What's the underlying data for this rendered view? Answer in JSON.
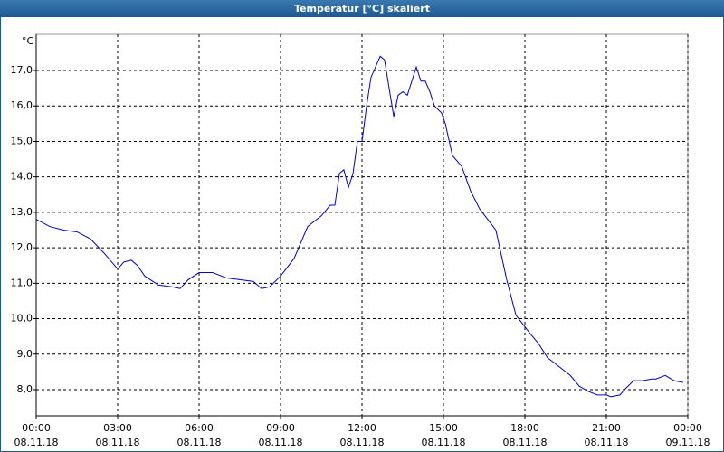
{
  "chart_data": {
    "type": "line",
    "title": "Temperatur [°C] skaliert",
    "y_label": "°C",
    "x": [
      0,
      0.5,
      1,
      1.5,
      2,
      2.5,
      3,
      3.23,
      3.5,
      3.73,
      4,
      4.5,
      5,
      5.3,
      5.6,
      6,
      6.5,
      7,
      7.5,
      8,
      8.3,
      8.6,
      9,
      9.5,
      10,
      10.5,
      10.83,
      11,
      11.17,
      11.33,
      11.5,
      11.67,
      11.83,
      12,
      12.17,
      12.33,
      12.67,
      12.83,
      13,
      13.17,
      13.33,
      13.5,
      13.67,
      14,
      14.17,
      14.33,
      14.5,
      14.67,
      14.93,
      15.07,
      15.33,
      15.67,
      16,
      16.33,
      16.83,
      16.93,
      17.33,
      17.67,
      18.17,
      18.5,
      18.83,
      19.17,
      19.67,
      20,
      20.33,
      20.67,
      21,
      21.17,
      21.5,
      21.67,
      22,
      22.33,
      22.67,
      22.83,
      23.17,
      23.5,
      23.83
    ],
    "series": [
      {
        "color": "#0000cc",
        "values": [
          12.8,
          12.6,
          12.5,
          12.45,
          12.25,
          11.85,
          11.4,
          11.6,
          11.65,
          11.5,
          11.2,
          10.95,
          10.9,
          10.85,
          11.1,
          11.3,
          11.3,
          11.15,
          11.1,
          11.05,
          10.85,
          10.9,
          11.2,
          11.7,
          12.6,
          12.9,
          13.2,
          13.2,
          14.1,
          14.2,
          13.7,
          14.1,
          15.0,
          15.0,
          16.0,
          16.8,
          17.4,
          17.3,
          16.5,
          15.7,
          16.3,
          16.4,
          16.3,
          17.1,
          16.7,
          16.7,
          16.4,
          16.0,
          15.8,
          15.5,
          14.6,
          14.3,
          13.6,
          13.1,
          12.6,
          12.5,
          11.1,
          10.1,
          9.6,
          9.3,
          8.9,
          8.7,
          8.4,
          8.1,
          7.95,
          7.85,
          7.85,
          7.8,
          7.85,
          8.0,
          8.25,
          8.25,
          8.3,
          8.3,
          8.4,
          8.25,
          8.2
        ]
      }
    ],
    "xlim": [
      0,
      24
    ],
    "xticks": [
      {
        "value": 0,
        "label": "00:00",
        "date": "08.11.18"
      },
      {
        "value": 3,
        "label": "03:00",
        "date": "08.11.18"
      },
      {
        "value": 6,
        "label": "06:00",
        "date": "08.11.18"
      },
      {
        "value": 9,
        "label": "09:00",
        "date": "08.11.18"
      },
      {
        "value": 12,
        "label": "12:00",
        "date": "08.11.18"
      },
      {
        "value": 15,
        "label": "15:00",
        "date": "08.11.18"
      },
      {
        "value": 18,
        "label": "18:00",
        "date": "08.11.18"
      },
      {
        "value": 21,
        "label": "21:00",
        "date": "08.11.18"
      },
      {
        "value": 24,
        "label": "00:00",
        "date": "09.11.18"
      }
    ],
    "ylim": [
      7.26,
      18.02
    ],
    "yticks": [
      {
        "value": 8,
        "label": "8,0"
      },
      {
        "value": 9,
        "label": "9,0"
      },
      {
        "value": 10,
        "label": "10,0"
      },
      {
        "value": 11,
        "label": "11,0"
      },
      {
        "value": 12,
        "label": "12,0"
      },
      {
        "value": 13,
        "label": "13,0"
      },
      {
        "value": 14,
        "label": "14,0"
      },
      {
        "value": 15,
        "label": "15,0"
      },
      {
        "value": 16,
        "label": "16,0"
      },
      {
        "value": 17,
        "label": "17,0"
      }
    ],
    "grid": true
  }
}
